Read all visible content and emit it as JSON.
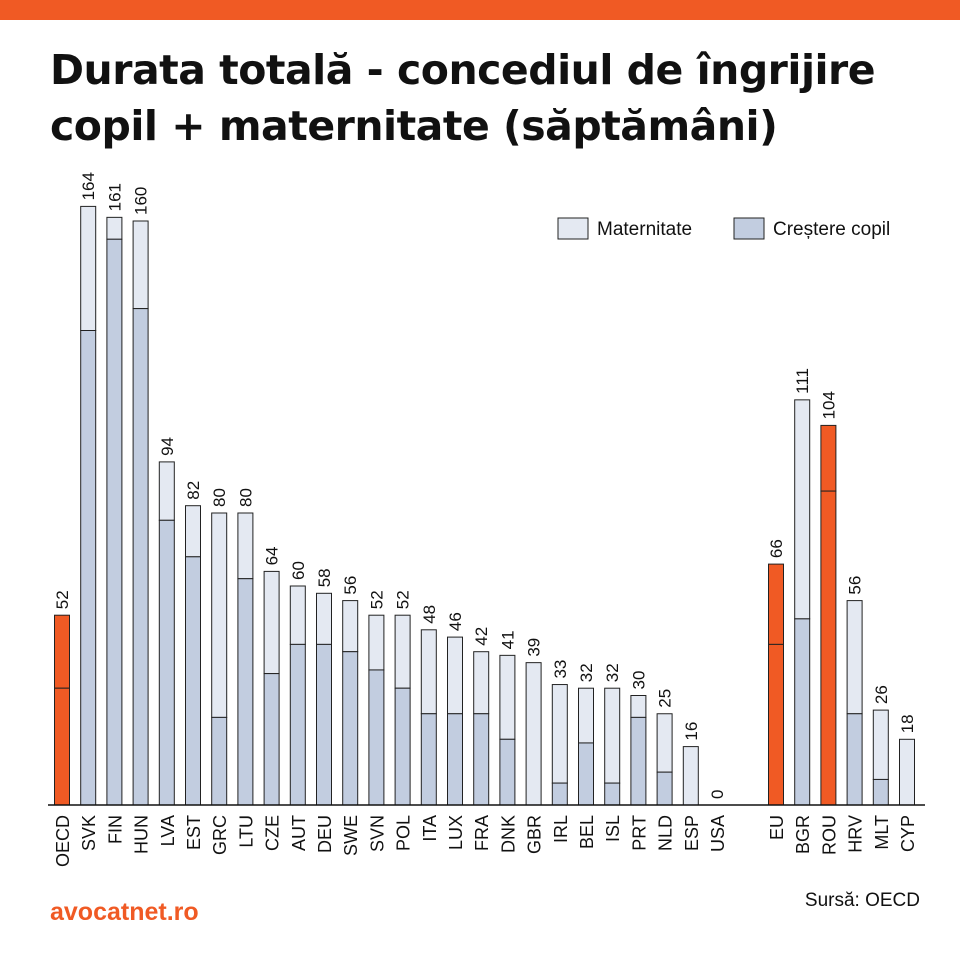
{
  "header": {
    "title_line1": "Durata totală - concediul de îngrijire",
    "title_line2": "copil + maternitate (săptămâni)",
    "accent_color": "#f05a24"
  },
  "footer": {
    "brand": "avocatnet.ro",
    "source": "Sursă: OECD"
  },
  "chart_data": {
    "type": "bar",
    "stacked": true,
    "title": "Durata totală - concediul de îngrijire copil + maternitate (săptămâni)",
    "xlabel": "",
    "ylabel": "",
    "ylim": [
      0,
      170
    ],
    "grid": false,
    "legend_position": "top-right",
    "categories": [
      "OECD",
      "SVK",
      "FIN",
      "HUN",
      "LVA",
      "EST",
      "GRC",
      "LTU",
      "CZE",
      "AUT",
      "DEU",
      "SWE",
      "SVN",
      "POL",
      "ITA",
      "LUX",
      "FRA",
      "DNK",
      "GBR",
      "IRL",
      "BEL",
      "ISL",
      "PRT",
      "NLD",
      "ESP",
      "USA",
      "EU",
      "BGR",
      "ROU",
      "HRV",
      "MLT",
      "CYP"
    ],
    "groups": [
      [
        "OECD",
        "SVK",
        "FIN",
        "HUN",
        "LVA",
        "EST",
        "GRC",
        "LTU",
        "CZE",
        "AUT",
        "DEU",
        "SWE",
        "SVN",
        "POL",
        "ITA",
        "LUX",
        "FRA",
        "DNK",
        "GBR",
        "IRL",
        "BEL",
        "ISL",
        "PRT",
        "NLD",
        "ESP",
        "USA"
      ],
      [
        "EU",
        "BGR",
        "ROU",
        "HRV",
        "MLT",
        "CYP"
      ]
    ],
    "totals": [
      52,
      164,
      161,
      160,
      94,
      82,
      80,
      80,
      64,
      60,
      58,
      56,
      52,
      52,
      48,
      46,
      42,
      41,
      39,
      33,
      32,
      32,
      30,
      25,
      16,
      0,
      66,
      111,
      104,
      56,
      26,
      18
    ],
    "series": [
      {
        "name": "Creștere copil",
        "color": "#c2cde0",
        "highlight_color": "#f05a24",
        "values": [
          32,
          130,
          155,
          136,
          78,
          68,
          24,
          62,
          36,
          44,
          44,
          42,
          37,
          32,
          25,
          25,
          25,
          18,
          0,
          6,
          17,
          6,
          24,
          9,
          0,
          0,
          44,
          51,
          86,
          25,
          7,
          0
        ]
      },
      {
        "name": "Maternitate",
        "color": "#e4e9f2",
        "highlight_color": "#f05a24",
        "values": [
          20,
          34,
          6,
          24,
          16,
          14,
          56,
          18,
          28,
          16,
          14,
          14,
          15,
          20,
          23,
          21,
          17,
          23,
          39,
          27,
          15,
          26,
          6,
          16,
          16,
          0,
          22,
          60,
          18,
          31,
          19,
          18
        ]
      }
    ],
    "highlighted": [
      "OECD",
      "EU",
      "ROU"
    ]
  }
}
